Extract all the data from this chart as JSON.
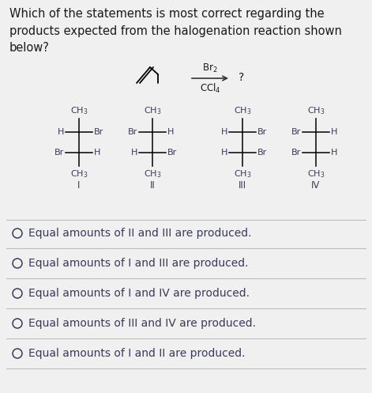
{
  "title_text": "Which of the statements is most correct regarding the\nproducts expected from the halogenation reaction shown\nbelow?",
  "title_fontsize": 10.5,
  "bg_color": "#f0f0f0",
  "answer_options": [
    "Equal amounts of II and III are produced.",
    "Equal amounts of I and III are produced.",
    "Equal amounts of I and IV are produced.",
    "Equal amounts of III and IV are produced.",
    "Equal amounts of I and II are produced."
  ],
  "font_size_answers": 10.0,
  "font_size_struct": 8.0,
  "struct_text_color": "#3a3a5a",
  "answer_text_color": "#3a3a5a",
  "circle_color": "#3a3a5a",
  "line_color": "#bbbbbb"
}
